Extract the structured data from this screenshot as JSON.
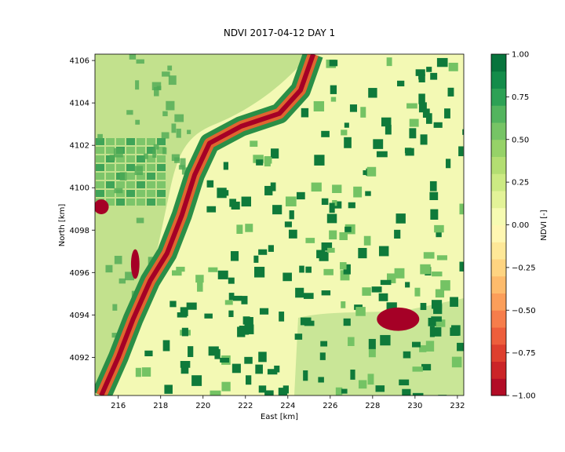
{
  "chart_data": {
    "type": "heatmap",
    "title": "NDVI  2017-04-12 DAY 1",
    "xlabel": "East [km]",
    "ylabel": "North [km]",
    "xlim": [
      214.9,
      232.3
    ],
    "ylim": [
      4090.2,
      4106.3
    ],
    "xticks": [
      216,
      218,
      220,
      222,
      224,
      226,
      228,
      230,
      232
    ],
    "yticks": [
      4092,
      4094,
      4096,
      4098,
      4100,
      4102,
      4104,
      4106
    ],
    "colorbar": {
      "label": "NDVI [-]",
      "range": [
        -1.0,
        1.0
      ],
      "ticks": [
        "1.00",
        "0.75",
        "0.50",
        "0.25",
        "0.00",
        "−0.25",
        "−0.50",
        "−0.75",
        "−1.00"
      ],
      "colormap": "RdYlGn",
      "levels": 20
    },
    "background_colors": {
      "bare_soil": "#f3f9b4",
      "field_dark": "#0f7a3a",
      "field_mid": "#74c364",
      "river_bank": "#2a8f47",
      "water": "#a50026",
      "river_edge": "#e0652f"
    },
    "river_centerline": [
      [
        225.2,
        4106.3
      ],
      [
        224.6,
        4104.6
      ],
      [
        223.6,
        4103.5
      ],
      [
        221.8,
        4102.9
      ],
      [
        220.3,
        4102.1
      ],
      [
        219.6,
        4100.6
      ],
      [
        219.0,
        4098.7
      ],
      [
        218.3,
        4096.9
      ],
      [
        217.5,
        4095.6
      ],
      [
        216.7,
        4093.8
      ],
      [
        216.0,
        4092.0
      ],
      [
        215.2,
        4090.2
      ]
    ],
    "water_bodies": [
      {
        "center": [
          229.2,
          4093.8
        ],
        "rx": 1.0,
        "ry": 0.55
      },
      {
        "center": [
          215.2,
          4099.1
        ],
        "rx": 0.35,
        "ry": 0.35
      },
      {
        "center": [
          216.8,
          4096.4
        ],
        "rx": 0.2,
        "ry": 0.7
      }
    ]
  }
}
